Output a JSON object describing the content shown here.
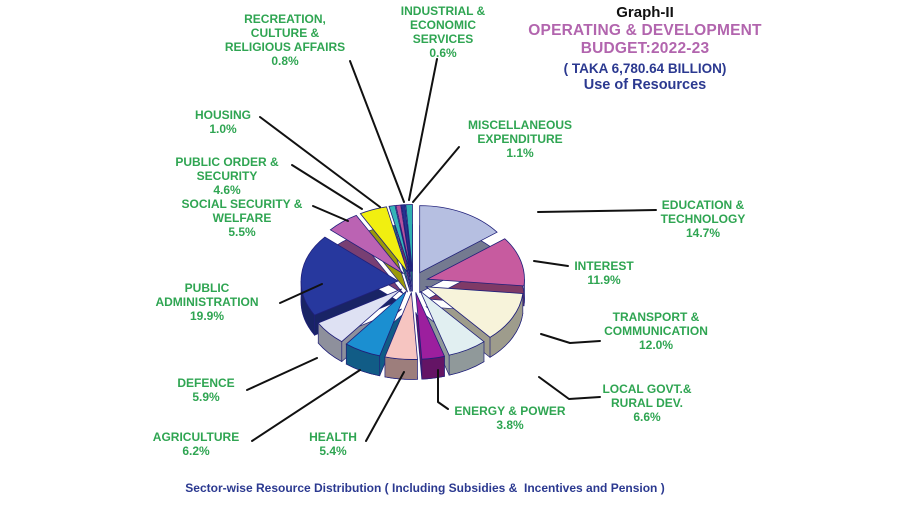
{
  "header": {
    "graph_label": "Graph-II",
    "title_line1": "OPERATING & DEVELOPMENT",
    "title_line2": "BUDGET:2022-23",
    "subtitle1": "( TAKA 6,780.64 BILLION)",
    "subtitle2": "Use of Resources",
    "title_color": "#b265ae",
    "subtitle_color": "#2b3990"
  },
  "caption": "Sector-wise Resource Distribution ( Including Subsidies &  Incentives and Pension )",
  "caption_color": "#2b3990",
  "label_color": "#2fa552",
  "leader_line_color": "#111111",
  "chart_data": {
    "type": "pie",
    "style": "3d-exploded",
    "title": "Graph-II OPERATING & DEVELOPMENT BUDGET:2022-23 ( TAKA 6,780.64 BILLION) Use of Resources",
    "unit": "%",
    "start_angle_deg": -90,
    "direction": "clockwise",
    "total": 100.0,
    "sectors": [
      {
        "name": "EDUCATION & TECHNOLOGY",
        "lines": [
          "EDUCATION &",
          "TECHNOLOGY"
        ],
        "value": 14.7,
        "pct": "14.7%",
        "color": "#b6bfe1"
      },
      {
        "name": "INTEREST",
        "lines": [
          "INTEREST"
        ],
        "value": 11.9,
        "pct": "11.9%",
        "color": "#c75b9f"
      },
      {
        "name": "TRANSPORT & COMMUNICATION",
        "lines": [
          "TRANSPORT &",
          "COMMUNICATION"
        ],
        "value": 12.0,
        "pct": "12.0%",
        "color": "#f7f3da"
      },
      {
        "name": "LOCAL GOVT.& RURAL DEV.",
        "lines": [
          "LOCAL GOVT.&",
          "RURAL DEV."
        ],
        "value": 6.6,
        "pct": "6.6%",
        "color": "#e1eff1"
      },
      {
        "name": "ENERGY & POWER",
        "lines": [
          "ENERGY & POWER"
        ],
        "value": 3.8,
        "pct": "3.8%",
        "color": "#9c1f9e"
      },
      {
        "name": "HEALTH",
        "lines": [
          "HEALTH"
        ],
        "value": 5.4,
        "pct": "5.4%",
        "color": "#f6c5c1"
      },
      {
        "name": "AGRICULTURE",
        "lines": [
          "AGRICULTURE"
        ],
        "value": 6.2,
        "pct": "6.2%",
        "color": "#1b8fd1"
      },
      {
        "name": "DEFENCE",
        "lines": [
          "DEFENCE"
        ],
        "value": 5.9,
        "pct": "5.9%",
        "color": "#dee1f3"
      },
      {
        "name": "PUBLIC ADMINISTRATION",
        "lines": [
          "PUBLIC",
          "ADMINISTRATION"
        ],
        "value": 19.9,
        "pct": "19.9%",
        "color": "#27389e"
      },
      {
        "name": "SOCIAL SECURITY & WELFARE",
        "lines": [
          "SOCIAL SECURITY &",
          "WELFARE"
        ],
        "value": 5.5,
        "pct": "5.5%",
        "color": "#bb63b3"
      },
      {
        "name": "PUBLIC ORDER & SECURITY",
        "lines": [
          "PUBLIC ORDER &",
          "SECURITY"
        ],
        "value": 4.6,
        "pct": "4.6%",
        "color": "#f1ef10"
      },
      {
        "name": "HOUSING",
        "lines": [
          "HOUSING"
        ],
        "value": 1.0,
        "pct": "1.0%",
        "color": "#35b4b8"
      },
      {
        "name": "RECREATION, CULTURE & RELIGIOUS AFFAIRS",
        "lines": [
          "RECREATION,",
          "CULTURE &",
          "RELIGIOUS AFFAIRS"
        ],
        "value": 0.8,
        "pct": "0.8%",
        "color": "#b5509c"
      },
      {
        "name": "INDUSTRIAL & ECONOMIC SERVICES",
        "lines": [
          "INDUSTRIAL &",
          "ECONOMIC",
          "SERVICES"
        ],
        "value": 0.6,
        "pct": "0.6%",
        "color": "#24338f"
      },
      {
        "name": "MISCELLANEOUS EXPENDITURE",
        "lines": [
          "MISCELLANEOUS",
          "EXPENDITURE"
        ],
        "value": 1.1,
        "pct": "1.1%",
        "color": "#2fb0b2"
      }
    ]
  }
}
